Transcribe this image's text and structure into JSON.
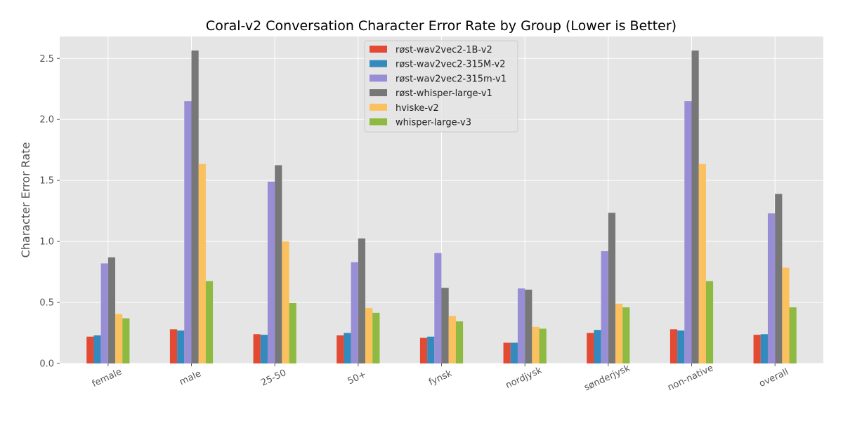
{
  "chart_data": {
    "type": "bar",
    "title": "Coral-v2 Conversation Character Error Rate by Group (Lower is Better)",
    "xlabel": "",
    "ylabel": "Character Error Rate",
    "ylim": [
      0,
      2.68
    ],
    "yticks": [
      0.0,
      0.5,
      1.0,
      1.5,
      2.0,
      2.5
    ],
    "ytick_labels": [
      "0.0",
      "0.5",
      "1.0",
      "1.5",
      "2.0",
      "2.5"
    ],
    "grid": true,
    "legend_position": "upper-center",
    "categories": [
      "female",
      "male",
      "25-50",
      "50+",
      "fynsk",
      "nordjysk",
      "sønderjysk",
      "non-native",
      "overall"
    ],
    "series": [
      {
        "name": "røst-wav2vec2-1B-v2",
        "color": "#E24A33",
        "values": [
          0.22,
          0.28,
          0.24,
          0.23,
          0.21,
          0.17,
          0.25,
          0.28,
          0.235
        ]
      },
      {
        "name": "røst-wav2vec2-315M-v2",
        "color": "#348ABD",
        "values": [
          0.23,
          0.27,
          0.235,
          0.25,
          0.22,
          0.17,
          0.275,
          0.27,
          0.24
        ]
      },
      {
        "name": "røst-wav2vec2-315m-v1",
        "color": "#988ED5",
        "values": [
          0.82,
          2.15,
          1.49,
          0.83,
          0.905,
          0.615,
          0.92,
          2.15,
          1.23
        ]
      },
      {
        "name": "røst-whisper-large-v1",
        "color": "#777777",
        "values": [
          0.87,
          2.565,
          1.625,
          1.025,
          0.62,
          0.605,
          1.235,
          2.565,
          1.39
        ]
      },
      {
        "name": "hviske-v2",
        "color": "#FBC15E",
        "values": [
          0.405,
          1.635,
          1.0,
          0.455,
          0.39,
          0.3,
          0.49,
          1.635,
          0.785
        ]
      },
      {
        "name": "whisper-large-v3",
        "color": "#8EBA42",
        "values": [
          0.37,
          0.675,
          0.495,
          0.415,
          0.345,
          0.285,
          0.46,
          0.675,
          0.46
        ]
      }
    ]
  }
}
